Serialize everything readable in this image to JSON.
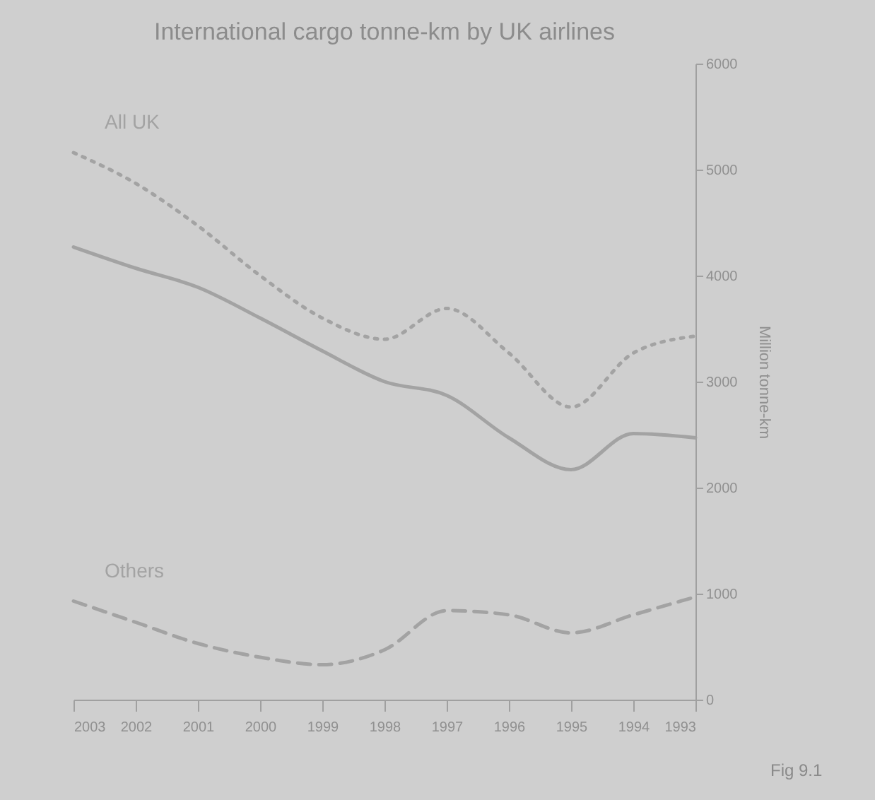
{
  "chart_data": {
    "type": "line",
    "title": "International cargo tonne-km by UK airlines",
    "ylabel": "Million tonne-km",
    "x": [
      1993,
      1994,
      1995,
      1996,
      1997,
      1998,
      1999,
      2000,
      2001,
      2002,
      2003
    ],
    "xlim": [
      2003,
      1993
    ],
    "xticks": [
      2003,
      2002,
      2001,
      2000,
      1999,
      1998,
      1997,
      1996,
      1995,
      1994,
      1993
    ],
    "ylim": [
      0,
      6000
    ],
    "yticks": [
      0,
      1000,
      2000,
      3000,
      4000,
      5000,
      6000
    ],
    "series": [
      {
        "name": "All UK",
        "color": "#a3a3a3",
        "line_style": "dotted",
        "values": [
          3430,
          3270,
          2760,
          3270,
          3690,
          3400,
          3600,
          4000,
          4470,
          4870,
          5160
        ]
      },
      {
        "color": "#a3a3a3",
        "line_style": "solid",
        "values": [
          2470,
          2510,
          2170,
          2470,
          2870,
          3000,
          3290,
          3600,
          3890,
          4070,
          4270
        ]
      },
      {
        "name": "Others",
        "color": "#a3a3a3",
        "line_style": "dashed",
        "values": [
          970,
          800,
          630,
          800,
          840,
          470,
          330,
          400,
          530,
          730,
          930
        ]
      }
    ],
    "grid": false,
    "legend": false,
    "marker": "none",
    "annotations": [
      "Fig 9.1"
    ]
  }
}
